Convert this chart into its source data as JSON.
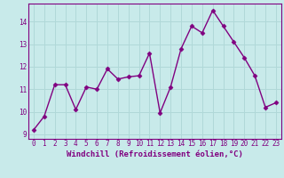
{
  "x": [
    0,
    1,
    2,
    3,
    4,
    5,
    6,
    7,
    8,
    9,
    10,
    11,
    12,
    13,
    14,
    15,
    16,
    17,
    18,
    19,
    20,
    21,
    22,
    23
  ],
  "y": [
    9.2,
    9.8,
    11.2,
    11.2,
    10.1,
    11.1,
    11.0,
    11.9,
    11.45,
    11.55,
    11.6,
    12.6,
    9.95,
    11.1,
    12.8,
    13.8,
    13.5,
    14.5,
    13.8,
    13.1,
    12.4,
    11.6,
    10.2,
    10.4
  ],
  "line_color": "#800080",
  "marker_color": "#800080",
  "bg_color": "#c8eaea",
  "grid_color": "#b0d8d8",
  "xlim": [
    -0.5,
    23.5
  ],
  "ylim": [
    8.8,
    14.8
  ],
  "yticks": [
    9,
    10,
    11,
    12,
    13,
    14
  ],
  "xticks": [
    0,
    1,
    2,
    3,
    4,
    5,
    6,
    7,
    8,
    9,
    10,
    11,
    12,
    13,
    14,
    15,
    16,
    17,
    18,
    19,
    20,
    21,
    22,
    23
  ],
  "tick_fontsize": 5.5,
  "xlabel_fontsize": 6.5,
  "xlabel": "Windchill (Refroidissement éolien,°C)",
  "line_width": 1.0,
  "marker_size": 2.5
}
